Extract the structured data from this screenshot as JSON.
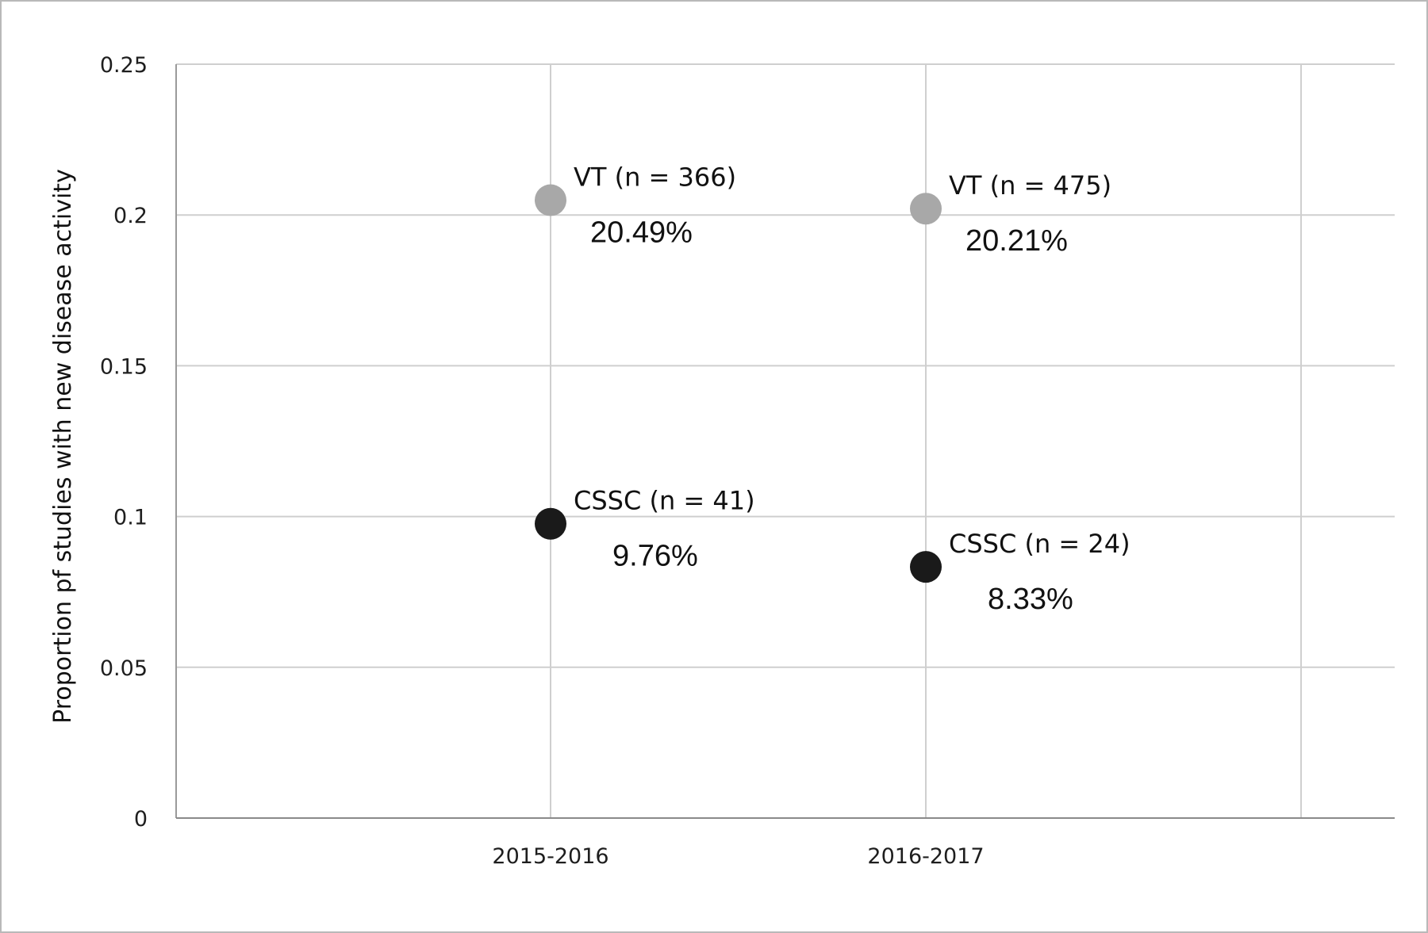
{
  "chart_data": {
    "type": "scatter",
    "title": "",
    "xlabel": "",
    "ylabel": "Proportion pf studies with new disease activity",
    "categories": [
      "2015-2016",
      "2016-2017"
    ],
    "ylim": [
      0,
      0.25
    ],
    "yticks": [
      "0",
      "0.05",
      "0.1",
      "0.15",
      "0.2",
      "0.25"
    ],
    "grid": true,
    "legend": "none",
    "series": [
      {
        "color": "#a8a8a8",
        "values": [
          0.2049,
          0.2021
        ],
        "labels": [
          "VT (n = 366)",
          "VT (n = 475)"
        ],
        "value_labels": [
          "20.49%",
          "20.21%"
        ]
      },
      {
        "color": "#1a1a1a",
        "values": [
          0.0976,
          0.0833
        ],
        "labels": [
          "CSSC (n = 41)",
          "CSSC (n = 24)"
        ],
        "value_labels": [
          "9.76%",
          "8.33%"
        ]
      }
    ]
  }
}
